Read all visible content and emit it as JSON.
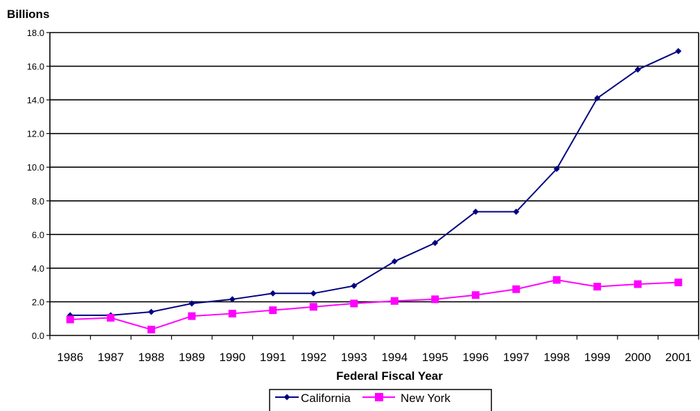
{
  "chart_data": {
    "type": "line",
    "title": "",
    "ylabel": "Billions",
    "xlabel": "Federal Fiscal Year",
    "categories": [
      "1986",
      "1987",
      "1988",
      "1989",
      "1990",
      "1991",
      "1992",
      "1993",
      "1994",
      "1995",
      "1996",
      "1997",
      "1998",
      "1999",
      "2000",
      "2001"
    ],
    "ylim": [
      0,
      18
    ],
    "yticks": [
      "0.0",
      "2.0",
      "4.0",
      "6.0",
      "8.0",
      "10.0",
      "12.0",
      "14.0",
      "16.0",
      "18.0"
    ],
    "grid": "horizontal",
    "legend_position": "bottom",
    "series": [
      {
        "name": "California",
        "color": "#000080",
        "marker": "diamond",
        "values": [
          1.2,
          1.2,
          1.4,
          1.9,
          2.15,
          2.5,
          2.5,
          2.95,
          4.4,
          5.5,
          7.35,
          7.35,
          9.9,
          14.1,
          15.8,
          16.9
        ]
      },
      {
        "name": "New York",
        "color": "#FF00FF",
        "marker": "square",
        "values": [
          0.95,
          1.05,
          0.35,
          1.15,
          1.3,
          1.5,
          1.7,
          1.9,
          2.05,
          2.15,
          2.4,
          2.75,
          3.3,
          2.9,
          3.05,
          3.15
        ]
      }
    ]
  }
}
